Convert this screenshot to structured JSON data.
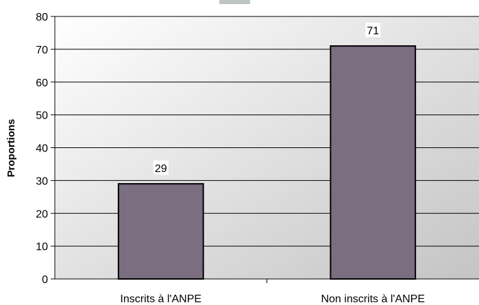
{
  "chart_data": {
    "type": "bar",
    "title": "",
    "xlabel": "",
    "ylabel": "Proportions",
    "ylim": [
      0,
      80
    ],
    "yticks": [
      0,
      10,
      20,
      30,
      40,
      50,
      60,
      70,
      80
    ],
    "categories": [
      "Inscrits à l'ANPE",
      "Non inscrits à l'ANPE"
    ],
    "values": [
      29,
      71
    ],
    "data_labels": [
      "29",
      "71"
    ],
    "grid": true,
    "legend": "none",
    "colors": {
      "bar_fill": "#7B6E80",
      "bar_stroke": "#000000",
      "grid": "#000000",
      "plot_bg_light": "#ffffff",
      "plot_bg_dark": "#c4c4c4",
      "title_hint": "#9aa6a0"
    }
  }
}
